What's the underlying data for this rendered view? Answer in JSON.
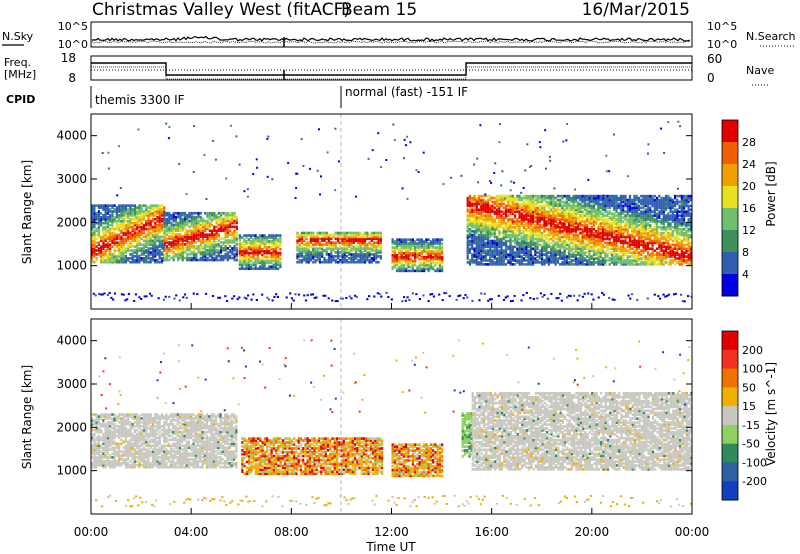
{
  "header": {
    "station_title": "Christmas Valley West (fitACF)",
    "beam": "Beam 15",
    "date": "16/Mar/2015"
  },
  "panels": {
    "nsky_label": "N.Sky",
    "nsearch_label": "N.Search",
    "noise_ticks": [
      "10^5",
      "10^0"
    ],
    "freq_label": "Freq.",
    "freq_unit": "[MHz]",
    "freq_ticks": [
      "18",
      "8"
    ],
    "nave_label": "Nave",
    "nave_ticks": [
      "60",
      "0"
    ],
    "cpid_label": "CPID",
    "cpid_segments": [
      "themis 3300 IF",
      "normal (fast) -151 IF"
    ]
  },
  "chart_data": [
    {
      "type": "heatmap",
      "name": "power",
      "ylabel": "Slant Range [km]",
      "yticks": [
        "4000",
        "3000",
        "2000",
        "1000"
      ],
      "ylim": [
        0,
        4500
      ],
      "colorbar_label": "Power [dB]",
      "colorbar_ticks": [
        "28",
        "24",
        "20",
        "16",
        "12",
        "8",
        "4"
      ],
      "colorbar_colors": [
        "#0000e0",
        "#2f5fb0",
        "#3f8f5f",
        "#6fbf6f",
        "#e8e020",
        "#f0a000",
        "#f06000",
        "#e00000"
      ],
      "scatter_bands": [
        {
          "t_start": 0,
          "t_end": 2.9,
          "r_low": 1050,
          "r_high": 2400,
          "peak_start": 1300,
          "peak_end": 2100
        },
        {
          "t_start": 2.9,
          "t_end": 5.8,
          "r_low": 1100,
          "r_high": 2200,
          "peak_start": 1450,
          "peak_end": 1900
        },
        {
          "t_start": 5.9,
          "t_end": 7.6,
          "r_low": 900,
          "r_high": 1700,
          "peak_start": 1300,
          "peak_end": 1300
        },
        {
          "t_start": 8.2,
          "t_end": 11.6,
          "r_low": 1050,
          "r_high": 1750,
          "peak_start": 1550,
          "peak_end": 1550
        },
        {
          "t_start": 12.0,
          "t_end": 14.0,
          "r_low": 850,
          "r_high": 1600,
          "peak_start": 1200,
          "peak_end": 1200
        },
        {
          "t_start": 15.0,
          "t_end": 24.0,
          "r_low": 1000,
          "r_high": 2600,
          "peak_start": 2400,
          "peak_end": 1200
        }
      ]
    },
    {
      "type": "heatmap",
      "name": "velocity",
      "ylabel": "Slant Range [km]",
      "yticks": [
        "4000",
        "3000",
        "2000",
        "1000"
      ],
      "ylim": [
        0,
        4500
      ],
      "colorbar_label": "Velocity [m s^-1]",
      "colorbar_ticks": [
        "200",
        "100",
        "50",
        "15",
        "-15",
        "-50",
        "-100",
        "-200"
      ],
      "colorbar_colors": [
        "#1040c0",
        "#3060a0",
        "#2e8b57",
        "#90d060",
        "#c8c8c0",
        "#f0b000",
        "#f07000",
        "#f03020",
        "#e00000"
      ],
      "xticks": [
        "00:00",
        "04:00",
        "08:00",
        "12:00",
        "16:00",
        "20:00",
        "00:00"
      ],
      "xlabel": "Time UT",
      "xlim": [
        0,
        24
      ],
      "scatter_bands": [
        {
          "t_start": 0,
          "t_end": 5.8,
          "r_low": 1050,
          "r_high": 2300,
          "class": "ground"
        },
        {
          "t_start": 6.0,
          "t_end": 11.6,
          "r_low": 900,
          "r_high": 1750,
          "class": "away"
        },
        {
          "t_start": 12.0,
          "t_end": 14.0,
          "r_low": 850,
          "r_high": 1600,
          "class": "away"
        },
        {
          "t_start": 14.8,
          "t_end": 15.2,
          "r_low": 1300,
          "r_high": 2300,
          "class": "toward"
        },
        {
          "t_start": 15.2,
          "t_end": 24.0,
          "r_low": 1000,
          "r_high": 2800,
          "class": "ground"
        }
      ]
    }
  ]
}
